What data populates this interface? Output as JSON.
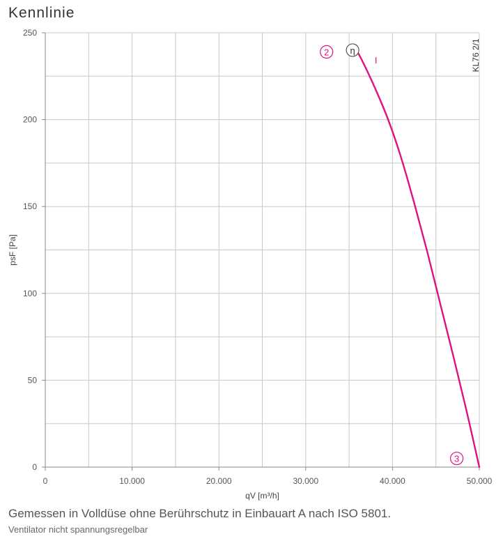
{
  "title": "Kennlinie",
  "footnote": "Gemessen in Volldüse ohne Berührschutz in Einbauart A nach ISO 5801.",
  "subnote": "Ventilator nicht spannungsregelbar",
  "colors": {
    "curve": "#e0117f",
    "grid": "#c8c8c8",
    "axis": "#888888"
  },
  "chart_data": {
    "type": "line",
    "xlabel": "qV [m³/h]",
    "ylabel": "psF [Pa]",
    "xlim": [
      0,
      50000
    ],
    "ylim": [
      0,
      250
    ],
    "x_ticks": [
      {
        "value": 0,
        "label": "0"
      },
      {
        "value": 10000,
        "label": "10.000"
      },
      {
        "value": 20000,
        "label": "20.000"
      },
      {
        "value": 30000,
        "label": "30.000"
      },
      {
        "value": 40000,
        "label": "40.000"
      },
      {
        "value": 50000,
        "label": "50.000"
      }
    ],
    "y_ticks": [
      {
        "value": 0,
        "label": "0"
      },
      {
        "value": 50,
        "label": "50"
      },
      {
        "value": 100,
        "label": "100"
      },
      {
        "value": 150,
        "label": "150"
      },
      {
        "value": 200,
        "label": "200"
      },
      {
        "value": 250,
        "label": "250"
      }
    ],
    "x_minor_step": 5000,
    "y_minor_step": 25,
    "grid": true,
    "series": [
      {
        "color": "#e0117f",
        "x": [
          35500,
          36500,
          38000,
          39500,
          41000,
          42500,
          44000,
          45500,
          47000,
          48500,
          50000
        ],
        "y": [
          243,
          234,
          218,
          200,
          178,
          152,
          124,
          94,
          64,
          33,
          0
        ]
      }
    ],
    "annotations": [
      {
        "text": "2",
        "style": "circle",
        "x": 32400,
        "y": 239
      },
      {
        "text": "η",
        "style": "circle-dark",
        "x": 35400,
        "y": 240
      },
      {
        "text": "I",
        "style": "plain",
        "x": 38100,
        "y": 234
      },
      {
        "text": "3",
        "style": "circle",
        "x": 47400,
        "y": 5
      },
      {
        "text": "KL76 2/1",
        "style": "vertical",
        "x": 49600,
        "y": 237
      }
    ]
  }
}
